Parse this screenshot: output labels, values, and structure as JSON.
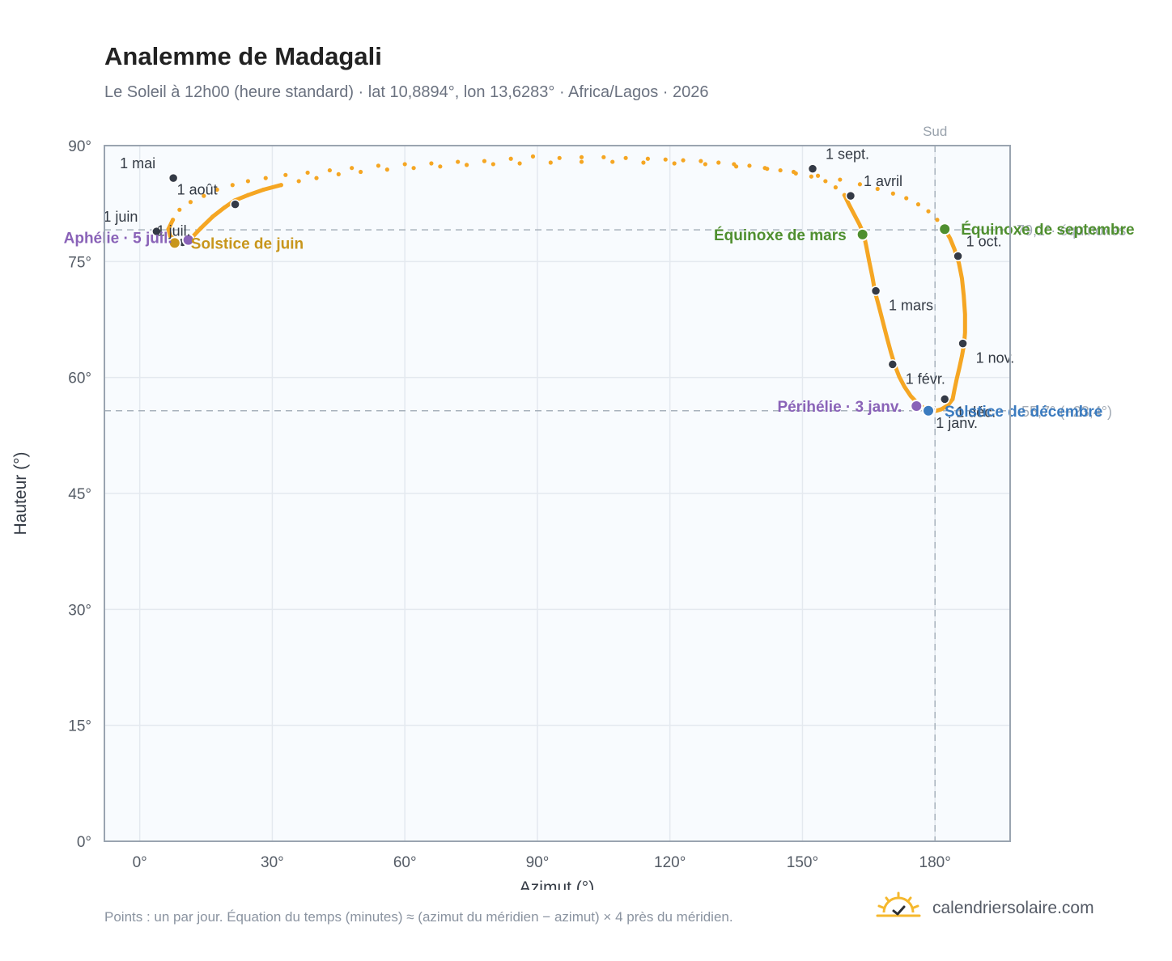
{
  "title": "Analemme de Madagali",
  "subtitle": "Le Soleil à 12h00 (heure standard) · lat 10,8894°, lon 13,6283° · Africa/Lagos · 2026",
  "footnote": "Points : un par jour. Équation du temps (minutes) ≈ (azimut du méridien − azimut) × 4 près du méridien.",
  "brand": {
    "name": "calendriersolaire.com",
    "icon": "sun-check-icon"
  },
  "colors": {
    "curve": "#f5a623",
    "month_marker": "#343a46",
    "equinox": "#4f8f2f",
    "june_solstice": "#c8961c",
    "december_solstice": "#3b7bbf",
    "perihelion_aphelion": "#8a63b8",
    "plot_bg": "#f8fbfe",
    "grid": "#e4e9ef",
    "axis_frame": "#9aa4b0",
    "reference_line": "#a8b2bc"
  },
  "chart_data": {
    "type": "scatter",
    "xlabel": "Azimut (°)",
    "ylabel": "Hauteur (°)",
    "xlim": [
      -8,
      197
    ],
    "ylim": [
      0,
      90
    ],
    "x_ticks": [
      {
        "value": 0,
        "label": "0°"
      },
      {
        "value": 30,
        "label": "30°"
      },
      {
        "value": 60,
        "label": "60°"
      },
      {
        "value": 90,
        "label": "90°"
      },
      {
        "value": 120,
        "label": "120°"
      },
      {
        "value": 150,
        "label": "150°"
      },
      {
        "value": 180,
        "label": "180°"
      }
    ],
    "y_ticks": [
      {
        "value": 0,
        "label": "0°"
      },
      {
        "value": 15,
        "label": "15°"
      },
      {
        "value": 30,
        "label": "30°"
      },
      {
        "value": 45,
        "label": "45°"
      },
      {
        "value": 60,
        "label": "60°"
      },
      {
        "value": 75,
        "label": "75°"
      },
      {
        "value": 90,
        "label": "90°"
      }
    ],
    "grid": true,
    "meridian": {
      "x": 180,
      "label": "Sud"
    },
    "reference_lines": [
      {
        "y": 79.1,
        "label": "79,1°· équinoxes"
      },
      {
        "y": 55.7,
        "label": "55,7° (−23,4°)"
      }
    ],
    "curve_dense": [
      [
        184,
        57.2
      ],
      [
        182.9,
        56.4
      ],
      [
        181.5,
        55.9
      ],
      [
        180.3,
        55.7
      ],
      [
        178.9,
        55.8
      ],
      [
        177.3,
        56.1
      ],
      [
        176,
        56.7
      ],
      [
        174.5,
        57.6
      ],
      [
        173.1,
        58.8
      ],
      [
        171.9,
        60.1
      ],
      [
        170.9,
        61.6
      ],
      [
        170,
        63.3
      ],
      [
        169.1,
        65.2
      ],
      [
        168.2,
        67.2
      ],
      [
        167.3,
        69.2
      ],
      [
        166.4,
        71.1
      ],
      [
        165.8,
        73.1
      ],
      [
        165.1,
        75
      ],
      [
        164.5,
        76.8
      ],
      [
        163.9,
        78.5
      ],
      [
        162.9,
        79.8
      ],
      [
        161.7,
        81.1
      ],
      [
        160.6,
        82.3
      ],
      [
        159.5,
        83.6
      ]
    ],
    "curve_sparse": [
      [
        159.5,
        83.6
      ],
      [
        157.5,
        84.6
      ],
      [
        155.2,
        85.4
      ],
      [
        152,
        86
      ],
      [
        148.5,
        86.4
      ],
      [
        145,
        86.8
      ],
      [
        141.5,
        87.1
      ],
      [
        138,
        87.4
      ],
      [
        134.5,
        87.6
      ],
      [
        131,
        87.8
      ],
      [
        127,
        88
      ],
      [
        123,
        88.1
      ],
      [
        119,
        88.2
      ],
      [
        115,
        88.3
      ],
      [
        110,
        88.4
      ],
      [
        105,
        88.5
      ],
      [
        100,
        88.5
      ],
      [
        95,
        88.4
      ],
      [
        89,
        88.6
      ],
      [
        84,
        88.3
      ],
      [
        78,
        88
      ],
      [
        72,
        87.9
      ],
      [
        66,
        87.7
      ],
      [
        60,
        87.6
      ],
      [
        54,
        87.4
      ],
      [
        48,
        87.1
      ],
      [
        43,
        86.8
      ],
      [
        38,
        86.5
      ],
      [
        33,
        86.2
      ],
      [
        28.5,
        85.8
      ],
      [
        24.5,
        85.4
      ],
      [
        21,
        84.9
      ],
      [
        17.5,
        84.3
      ],
      [
        14.5,
        83.5
      ],
      [
        11.5,
        82.7
      ],
      [
        9,
        81.7
      ],
      [
        7.5,
        80.4
      ],
      [
        6.5,
        79.2
      ],
      [
        6.9,
        78.3
      ],
      [
        8.2,
        77.7
      ],
      [
        9.8,
        77.5
      ],
      [
        11.3,
        77.8
      ]
    ],
    "curve_upper_branch": [
      [
        11.3,
        77.8
      ],
      [
        13.8,
        79.3
      ],
      [
        16.5,
        80.8
      ],
      [
        19.2,
        82
      ],
      [
        21.5,
        82.9
      ],
      [
        24.5,
        83.6
      ],
      [
        28,
        84.3
      ],
      [
        32,
        84.9
      ],
      [
        36,
        85.4
      ],
      [
        40,
        85.8
      ],
      [
        45,
        86.3
      ],
      [
        50,
        86.6
      ],
      [
        56,
        86.9
      ],
      [
        62,
        87.1
      ],
      [
        68,
        87.3
      ],
      [
        74,
        87.5
      ],
      [
        80,
        87.6
      ],
      [
        86,
        87.7
      ],
      [
        93,
        87.8
      ],
      [
        100,
        87.9
      ],
      [
        107,
        87.9
      ],
      [
        114,
        87.8
      ],
      [
        121,
        87.7
      ],
      [
        128,
        87.6
      ],
      [
        135,
        87.3
      ],
      [
        142,
        87
      ],
      [
        148,
        86.6
      ],
      [
        153.5,
        86.1
      ],
      [
        158.5,
        85.6
      ],
      [
        163,
        85
      ],
      [
        167,
        84.4
      ],
      [
        170.5,
        83.8
      ],
      [
        173.5,
        83.2
      ],
      [
        176.2,
        82.4
      ],
      [
        178.5,
        81.5
      ],
      [
        180.5,
        80.4
      ],
      [
        182.2,
        79.2
      ]
    ],
    "curve_lower_branch": [
      [
        182.2,
        79.2
      ],
      [
        183.4,
        78
      ],
      [
        184.4,
        76.6
      ],
      [
        185.4,
        74.8
      ],
      [
        186.1,
        72.8
      ],
      [
        186.5,
        70.6
      ],
      [
        186.8,
        68.2
      ],
      [
        186.8,
        65.8
      ],
      [
        186.6,
        64.4
      ],
      [
        186.1,
        62.8
      ],
      [
        185.5,
        61.2
      ],
      [
        184.9,
        59.8
      ],
      [
        184.4,
        58.4
      ],
      [
        184,
        57.2
      ]
    ],
    "month_markers": [
      {
        "label": "1 janv.",
        "x": 179.1,
        "y": 55.8
      },
      {
        "label": "1 févr.",
        "x": 170.4,
        "y": 61.7
      },
      {
        "label": "1 mars",
        "x": 166.6,
        "y": 71.2
      },
      {
        "label": "1 avril",
        "x": 160.9,
        "y": 83.5
      },
      {
        "label": "1 mai",
        "x": 7.6,
        "y": 85.8
      },
      {
        "label": "1 juin",
        "x": 3.8,
        "y": 78.9
      },
      {
        "label": "1 juil.",
        "x": 9.7,
        "y": 77.5
      },
      {
        "label": "1 août",
        "x": 21.6,
        "y": 82.4
      },
      {
        "label": "1 sept.",
        "x": 152.3,
        "y": 87.0
      },
      {
        "label": "1 oct.",
        "x": 185.2,
        "y": 75.7
      },
      {
        "label": "1 nov.",
        "x": 186.3,
        "y": 64.4
      },
      {
        "label": "1 déc.",
        "x": 182.2,
        "y": 57.2
      }
    ],
    "events": [
      {
        "key": "march_equinox",
        "label": "Équinoxe de mars",
        "x": 163.6,
        "y": 78.5
      },
      {
        "key": "september_equinox",
        "label": "Équinoxe de septembre",
        "x": 182.2,
        "y": 79.2
      },
      {
        "key": "june_solstice",
        "label": "Solstice de juin",
        "x": 7.9,
        "y": 77.4
      },
      {
        "key": "december_solstice",
        "label": "Solstice de décembre",
        "x": 178.5,
        "y": 55.7
      },
      {
        "key": "perihelion",
        "label": "Périhélie · 3 janv.",
        "x": 175.8,
        "y": 56.3
      },
      {
        "key": "aphelion",
        "label": "Aphélie · 5 juil.",
        "x": 11.0,
        "y": 77.8
      }
    ]
  }
}
